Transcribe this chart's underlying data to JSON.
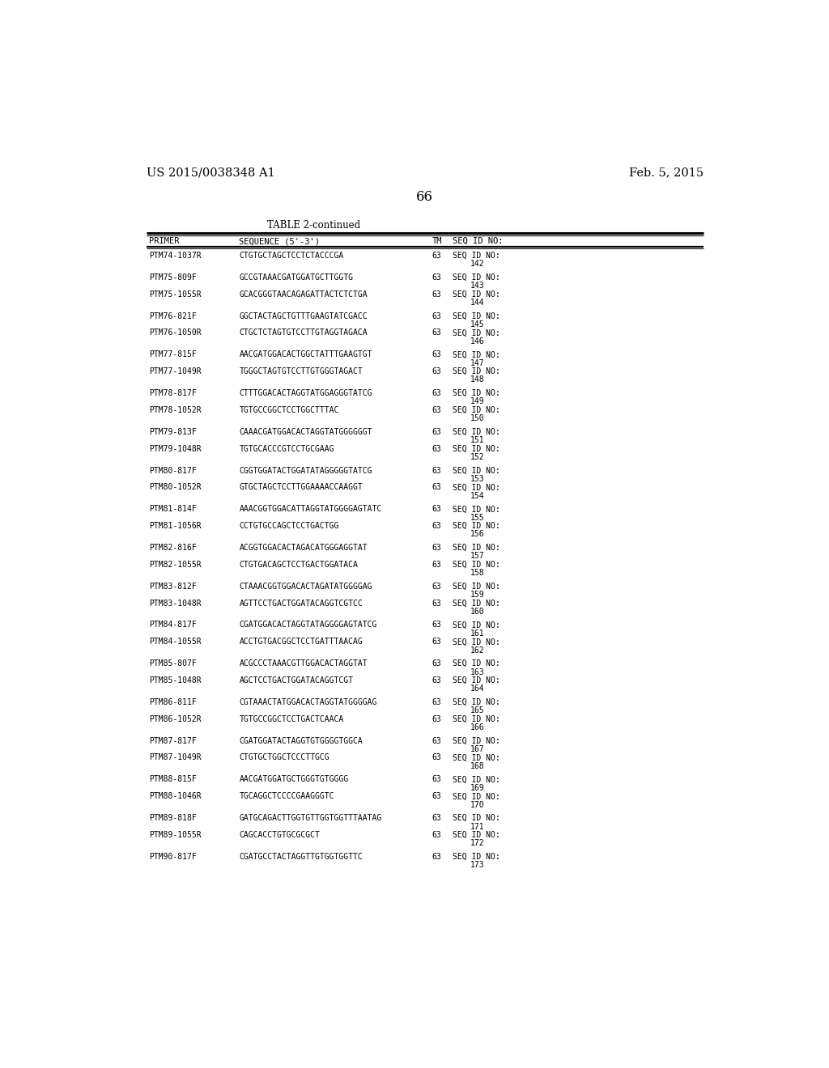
{
  "header_left": "US 2015/0038348 A1",
  "header_right": "Feb. 5, 2015",
  "page_number": "66",
  "table_title": "TABLE 2-continued",
  "col_headers": [
    "PRIMER",
    "SEQUENCE (5'-3')",
    "TM",
    "SEQ ID NO:"
  ],
  "rows": [
    [
      "PTM74-1037R",
      "CTGTGCTAGCTCCTCTACCCGA",
      "63",
      "SEQ ID NO:",
      "142"
    ],
    [
      "PTM75-809F",
      "GCCGTAAACGATGGATGCTTGGTG",
      "63",
      "SEQ ID NO:",
      "143"
    ],
    [
      "PTM75-1055R",
      "GCACGGGTAACAGAGATTACTCTCTGA",
      "63",
      "SEQ ID NO:",
      "144"
    ],
    [
      "PTM76-821F",
      "GGCTACTAGCTGTTTGAAGTATCGACC",
      "63",
      "SEQ ID NO:",
      "145"
    ],
    [
      "PTM76-1050R",
      "CTGCTCTAGTGTCCTTGTAGGTAGACA",
      "63",
      "SEQ ID NO:",
      "146"
    ],
    [
      "PTM77-815F",
      "AACGATGGACACTGGCTATTTGAAGTGT",
      "63",
      "SEQ ID NO:",
      "147"
    ],
    [
      "PTM77-1049R",
      "TGGGCTAGTGTCCTTGTGGGTAGACT",
      "63",
      "SEQ ID NO:",
      "148"
    ],
    [
      "PTM78-817F",
      "CTTTGGACACTAGGTATGGAGGGTATCG",
      "63",
      "SEQ ID NO:",
      "149"
    ],
    [
      "PTM78-1052R",
      "TGTGCCGGCTCCTGGCTTTAC",
      "63",
      "SEQ ID NO:",
      "150"
    ],
    [
      "PTM79-813F",
      "CAAACGATGGACACTAGGTATGGGGGGT",
      "63",
      "SEQ ID NO:",
      "151"
    ],
    [
      "PTM79-1048R",
      "TGTGCACCCGTCCTGCGAAG",
      "63",
      "SEQ ID NO:",
      "152"
    ],
    [
      "PTM80-817F",
      "CGGTGGATACTGGATATAGGGGGTATCG",
      "63",
      "SEQ ID NO:",
      "153"
    ],
    [
      "PTM80-1052R",
      "GTGCTAGCTCCTTGGAAAACCAAGGT",
      "63",
      "SEQ ID NO:",
      "154"
    ],
    [
      "PTM81-814F",
      "AAACGGTGGACATTAGGTATGGGGAGTATC",
      "63",
      "SEQ ID NO:",
      "155"
    ],
    [
      "PTM81-1056R",
      "CCTGTGCCAGCTCCTGACTGG",
      "63",
      "SEQ ID NO:",
      "156"
    ],
    [
      "PTM82-816F",
      "ACGGTGGACACTAGACATGGGAGGTAT",
      "63",
      "SEQ ID NO:",
      "157"
    ],
    [
      "PTM82-1055R",
      "CTGTGACAGCTCCTGACTGGATACA",
      "63",
      "SEQ ID NO:",
      "158"
    ],
    [
      "PTM83-812F",
      "CTAAACGGTGGACACTAGATATGGGGAG",
      "63",
      "SEQ ID NO:",
      "159"
    ],
    [
      "PTM83-1048R",
      "AGTTCCTGACTGGATACAGGTCGTCC",
      "63",
      "SEQ ID NO:",
      "160"
    ],
    [
      "PTM84-817F",
      "CGATGGACACTAGGTATAGGGGAGTATCG",
      "63",
      "SEQ ID NO:",
      "161"
    ],
    [
      "PTM84-1055R",
      "ACCTGTGACGGCTCCTGATTTAACAG",
      "63",
      "SEQ ID NO:",
      "162"
    ],
    [
      "PTM85-807F",
      "ACGCCCTAAACGTTGGACACTAGGTAT",
      "63",
      "SEQ ID NO:",
      "163"
    ],
    [
      "PTM85-1048R",
      "AGCTCCTGACTGGATACAGGTCGT",
      "63",
      "SEQ ID NO:",
      "164"
    ],
    [
      "PTM86-811F",
      "CGTAAACTATGGACACTAGGTATGGGGAG",
      "63",
      "SEQ ID NO:",
      "165"
    ],
    [
      "PTM86-1052R",
      "TGTGCCGGCTCCTGACTCAACA",
      "63",
      "SEQ ID NO:",
      "166"
    ],
    [
      "PTM87-817F",
      "CGATGGATACTAGGTGTGGGGTGGCA",
      "63",
      "SEQ ID NO:",
      "167"
    ],
    [
      "PTM87-1049R",
      "CTGTGCTGGCTCCCTTGCG",
      "63",
      "SEQ ID NO:",
      "168"
    ],
    [
      "PTM88-815F",
      "AACGATGGATGCTGGGTGTGGGG",
      "63",
      "SEQ ID NO:",
      "169"
    ],
    [
      "PTM88-1046R",
      "TGCAGGCTCCCCGAAGGGTC",
      "63",
      "SEQ ID NO:",
      "170"
    ],
    [
      "PTM89-818F",
      "GATGCAGACTTGGTGTTGGTGGTTTAATAG",
      "63",
      "SEQ ID NO:",
      "171"
    ],
    [
      "PTM89-1055R",
      "CAGCACCTGTGCGCGCT",
      "63",
      "SEQ ID NO:",
      "172"
    ],
    [
      "PTM90-817F",
      "CGATGCCTACTAGGTTGTGGTGGTTC",
      "63",
      "SEQ ID NO:",
      "173"
    ]
  ],
  "groups": [
    [
      0
    ],
    [
      1,
      2
    ],
    [
      3,
      4
    ],
    [
      5,
      6
    ],
    [
      7,
      8
    ],
    [
      9,
      10
    ],
    [
      11,
      12
    ],
    [
      13,
      14
    ],
    [
      15,
      16
    ],
    [
      17,
      18
    ],
    [
      19,
      20
    ],
    [
      21,
      22
    ],
    [
      23,
      24
    ],
    [
      25,
      26
    ],
    [
      27,
      28
    ],
    [
      29,
      30
    ],
    [
      31
    ]
  ],
  "background_color": "#ffffff",
  "text_color": "#000000"
}
